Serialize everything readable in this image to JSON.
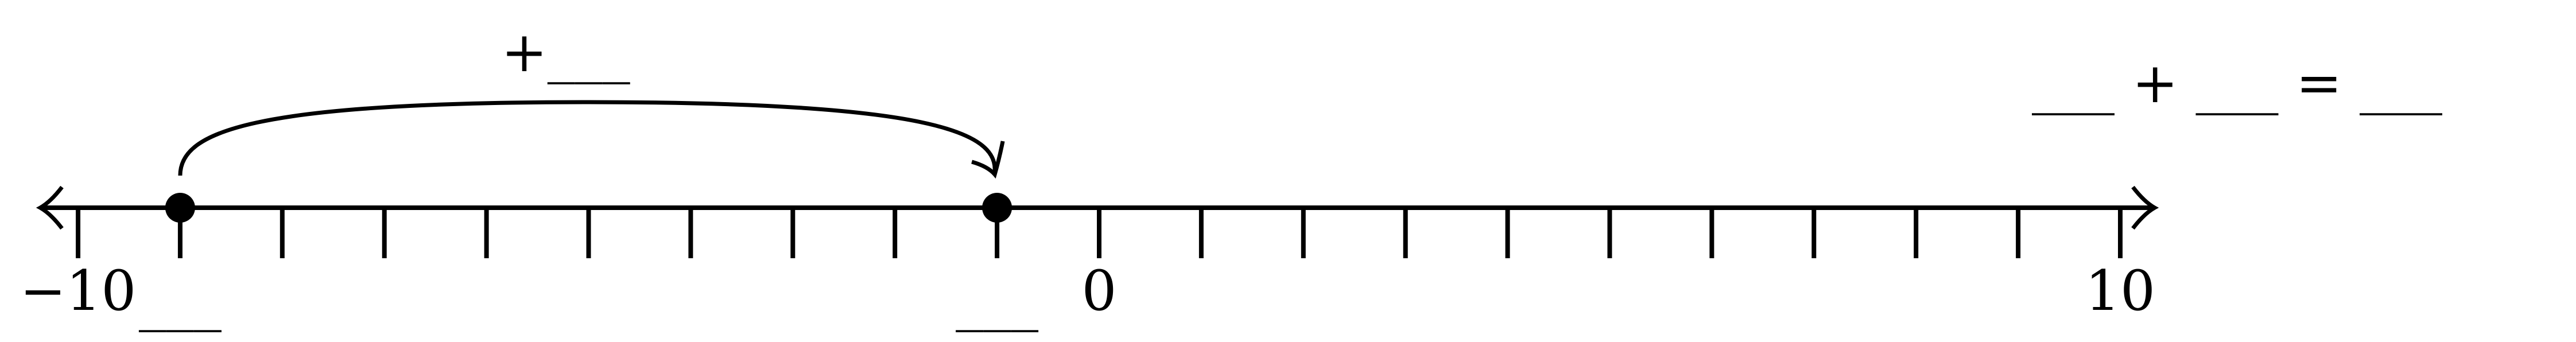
{
  "number_line": {
    "min": -10,
    "max": 10,
    "tick_step": 1,
    "labeled_ticks": [
      {
        "value": -10,
        "label": "−10"
      },
      {
        "value": 0,
        "label": "0"
      },
      {
        "value": 10,
        "label": "10"
      }
    ],
    "points": [
      {
        "value": -9,
        "blank": "___"
      },
      {
        "value": -1,
        "blank": "___"
      }
    ],
    "jump": {
      "from": -9,
      "to": -1,
      "label": "+___"
    }
  },
  "equation": {
    "text": "___ + ___ = ___"
  },
  "colors": {
    "ink": "#000000",
    "background": "#ffffff"
  }
}
